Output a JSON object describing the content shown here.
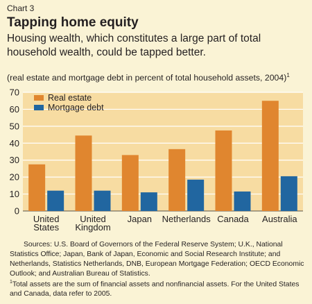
{
  "header": {
    "chart_label": "Chart 3",
    "title": "Tapping home equity",
    "subtitle": "Housing wealth, which constitutes a large part of total household wealth, could be tapped better.",
    "unit_note": "(real estate and mortgage debt in percent of total household assets, 2004)",
    "unit_note_marker": "1"
  },
  "chart_data": {
    "type": "bar",
    "categories": [
      [
        "United",
        "States"
      ],
      [
        "United",
        "Kingdom"
      ],
      [
        "Japan"
      ],
      [
        "Netherlands"
      ],
      [
        "Canada"
      ],
      [
        "Australia"
      ]
    ],
    "series": [
      {
        "name": "Real estate",
        "color": "#E0862F",
        "values": [
          27.5,
          44.5,
          33,
          36.5,
          47.5,
          65
        ]
      },
      {
        "name": "Mortgage debt",
        "color": "#2166A0",
        "values": [
          12,
          12,
          11,
          18.5,
          11.5,
          20.5
        ]
      }
    ],
    "ylim": [
      0,
      70
    ],
    "yticks": [
      0,
      10,
      20,
      30,
      40,
      50,
      60,
      70
    ],
    "grid": true,
    "legend": "top-left",
    "plot_background": "#F7DCA2",
    "grid_color": "#FFFFFF"
  },
  "notes": {
    "sources": "Sources: U.S. Board of Governors of the Federal Reserve System; U.K., National Statistics Office; Japan, Bank of Japan, Economic and Social Research Institute; and Netherlands, Statistics Netherlands, DNB, European Mortgage Federation; OECD Economic Outlook; and Australian Bureau of Statistics.",
    "footnote_marker": "1",
    "footnote": "Total assets are the sum of financial assets and nonfinancial assets. For the United States and Canada, data refer to 2005."
  }
}
